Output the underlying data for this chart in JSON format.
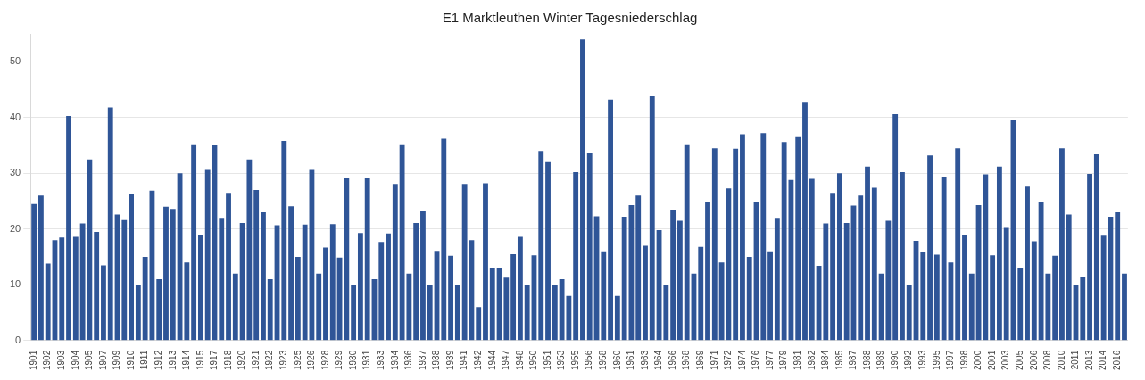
{
  "chart_data": {
    "type": "bar",
    "title": "E1 Marktleuthen Winter Tagesniederschlag",
    "categories": [
      "1901",
      null,
      "1902",
      null,
      "1903",
      null,
      "1904",
      null,
      "1905",
      null,
      "1907",
      null,
      "1909",
      null,
      "1910",
      null,
      "1911",
      null,
      "1912",
      null,
      "1913",
      null,
      "1914",
      null,
      "1915",
      null,
      "1917",
      null,
      "1918",
      null,
      "1920",
      null,
      "1921",
      null,
      "1922",
      null,
      "1923",
      null,
      "1925",
      null,
      "1926",
      null,
      "1928",
      null,
      "1929",
      null,
      "1930",
      null,
      "1931",
      null,
      "1933",
      null,
      "1934",
      null,
      "1936",
      null,
      "1937",
      null,
      "1938",
      null,
      "1939",
      null,
      "1941",
      null,
      "1942",
      null,
      "1944",
      null,
      "1947",
      null,
      "1948",
      null,
      "1950",
      null,
      "1951",
      null,
      "1953",
      null,
      "1955",
      null,
      "1956",
      null,
      "1958",
      null,
      "1960",
      null,
      "1961",
      null,
      "1963",
      null,
      "1964",
      null,
      "1966",
      null,
      "1968",
      null,
      "1969",
      null,
      "1971",
      null,
      "1972",
      null,
      "1974",
      null,
      "1976",
      null,
      "1977",
      null,
      "1979",
      null,
      "1981",
      null,
      "1982",
      null,
      "1984",
      null,
      "1985",
      null,
      "1987",
      null,
      "1988",
      null,
      "1989",
      null,
      "1990",
      null,
      "1992",
      null,
      "1993",
      null,
      "1995",
      null,
      "1997",
      null,
      "1998",
      null,
      "2000",
      null,
      "2001",
      null,
      "2003",
      null,
      "2005",
      null,
      "2006",
      null,
      "2008",
      null,
      "2010",
      null,
      "2011",
      null,
      "2013",
      null,
      "2014",
      null,
      "2016",
      null
    ],
    "values": [
      24.5,
      26,
      13.8,
      18,
      18.5,
      40.3,
      18.6,
      21,
      32.5,
      19.5,
      13.5,
      41.8,
      22.6,
      21.6,
      26.2,
      10,
      15,
      26.9,
      11,
      24,
      23.6,
      30,
      14,
      35.2,
      18.9,
      30.6,
      35,
      22,
      26.5,
      12,
      21.1,
      32.5,
      27,
      23,
      11,
      20.7,
      35.8,
      24.1,
      15,
      20.8,
      30.6,
      12,
      16.7,
      20.9,
      14.9,
      29.1,
      10,
      19.3,
      29.1,
      11,
      17.7,
      19.2,
      28.1,
      35.2,
      12,
      21.1,
      23.2,
      10,
      16.1,
      36.2,
      15.2,
      10,
      28.1,
      18,
      6,
      28.2,
      13,
      13,
      11.3,
      15.5,
      18.6,
      10,
      15.3,
      34,
      32,
      10,
      11,
      8,
      30.2,
      54,
      33.6,
      22.3,
      16,
      43.2,
      8,
      22.2,
      24.3,
      26,
      17,
      43.8,
      19.8,
      10,
      23.5,
      21.5,
      35.2,
      12,
      16.8,
      24.9,
      34.5,
      14,
      27.3,
      34.4,
      37,
      15,
      24.9,
      37.2,
      16,
      22,
      35.6,
      28.8,
      36.5,
      42.8,
      29,
      13.4,
      21,
      26.5,
      30,
      21.1,
      24.2,
      26,
      31.2,
      27.4,
      12,
      21.5,
      40.6,
      30.2,
      10,
      17.9,
      15.9,
      33.2,
      15.4,
      29.4,
      14,
      34.5,
      18.9,
      12,
      24.3,
      29.8,
      15.3,
      31.2,
      20.2,
      39.6,
      13,
      27.6,
      17.8,
      24.8,
      12,
      15.2,
      34.5,
      22.6,
      10,
      11.5,
      29.9,
      33.4,
      18.8,
      22.2,
      23,
      12
    ],
    "color": "#2f5597",
    "ylim": [
      0,
      55
    ],
    "yticks": [
      0,
      10,
      20,
      30,
      40,
      50
    ],
    "grid": "y",
    "legend": false
  }
}
